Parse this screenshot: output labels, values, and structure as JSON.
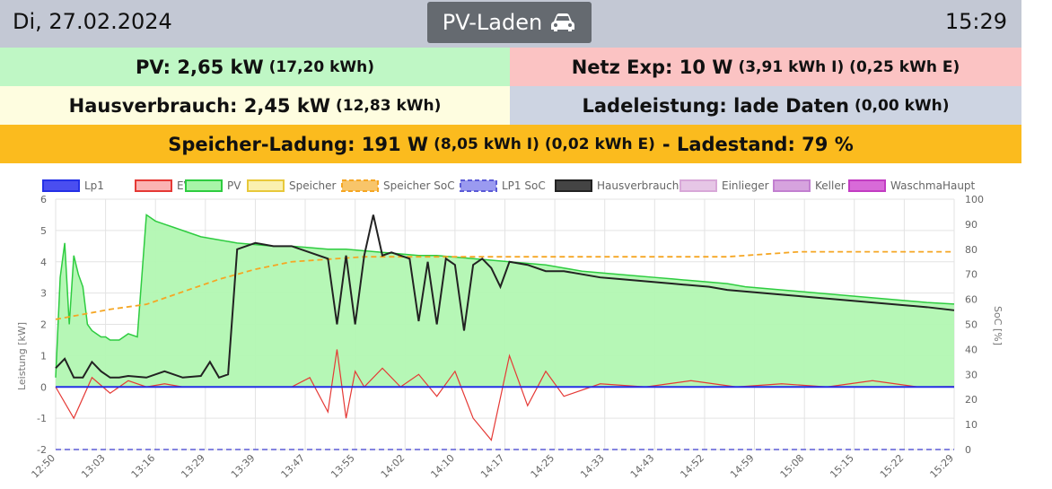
{
  "header": {
    "date": "Di, 27.02.2024",
    "title": "PV-Laden",
    "time": "15:29",
    "title_icon": "car-icon"
  },
  "summary": {
    "pv_main": "PV: 2,65 kW",
    "pv_sub": "(17,20 kWh)",
    "netz_main": "Netz Exp: 10 W",
    "netz_sub": "(3,91 kWh I) (0,25 kWh E)",
    "haus_main": "Hausverbrauch: 2,45 kW",
    "haus_sub": "(12,83 kWh)",
    "lade_main": "Ladeleistung: lade Daten",
    "lade_sub": "(0,00 kWh)",
    "speicher_main": "Speicher-Ladung: 191 W",
    "speicher_sub": "(8,05 kWh I) (0,02 kWh E)",
    "ladestand": "- Ladestand: 79 %"
  },
  "colors": {
    "pv": "#2ecc40",
    "pv_fill": "#b2f7b2",
    "evu": "#e53935",
    "speicher": "#f7d04a",
    "speicher_soc": "#f5a623",
    "lp1": "#2430e6",
    "lp1_soc": "#5b5bd6",
    "haus": "#222222",
    "einlieger": "#d8a8d8",
    "keller": "#c27fd0",
    "waschma": "#c23cc2"
  },
  "chart_data": {
    "type": "line",
    "ylabel": "Leistung [kW]",
    "y2label": "SoC [%]",
    "ylim": [
      -2,
      6
    ],
    "y2lim": [
      0,
      100
    ],
    "yticks": [
      "6",
      "5",
      "4",
      "3",
      "2",
      "1",
      "0",
      "-1",
      "-2"
    ],
    "y2ticks": [
      "100",
      "90",
      "80",
      "70",
      "60",
      "50",
      "40",
      "30",
      "20",
      "10",
      "0"
    ],
    "x_ticks": [
      "12:50",
      "13:03",
      "13:16",
      "13:29",
      "13:39",
      "13:47",
      "13:55",
      "14:02",
      "14:10",
      "14:17",
      "14:25",
      "14:33",
      "14:43",
      "14:52",
      "14:59",
      "15:08",
      "15:15",
      "15:22",
      "15:29"
    ],
    "legend": [
      {
        "name": "Lp1",
        "color": "#2430e6",
        "fill": "#4a4ef0",
        "dash": false
      },
      {
        "name": "EVU",
        "color": "#e53935",
        "fill": "#fbb3b3",
        "dash": false
      },
      {
        "name": "PV",
        "color": "#2ecc40",
        "fill": "#a8f5a8",
        "dash": false
      },
      {
        "name": "Speicher",
        "color": "#e8c83a",
        "fill": "#faf0b0",
        "dash": false
      },
      {
        "name": "Speicher SoC",
        "color": "#f5a623",
        "fill": "#f8c56a",
        "dash": true
      },
      {
        "name": "LP1 SoC",
        "color": "#5b5bd6",
        "fill": "#9a9af0",
        "dash": true
      },
      {
        "name": "Hausverbrauch",
        "color": "#222222",
        "fill": "#444444",
        "dash": false
      },
      {
        "name": "Einlieger",
        "color": "#d8a8d8",
        "fill": "#e6c6e6",
        "dash": false
      },
      {
        "name": "Keller",
        "color": "#c27fd0",
        "fill": "#d6a3de",
        "dash": false
      },
      {
        "name": "WaschmaHaupt",
        "color": "#c23cc2",
        "fill": "#d86ad8",
        "dash": false
      }
    ],
    "series": [
      {
        "name": "PV",
        "x": [
          0,
          0.5,
          1,
          1.5,
          2,
          2.5,
          3,
          3.5,
          4,
          4.5,
          5,
          5.5,
          6,
          6.5,
          7,
          7.5,
          8,
          9,
          10,
          11,
          12,
          13,
          14,
          15,
          16,
          18,
          20,
          22,
          24,
          26,
          28,
          30,
          32,
          34,
          36,
          38,
          40,
          42,
          44,
          46,
          48,
          50,
          52,
          54,
          56,
          58,
          60,
          62,
          64,
          66,
          68,
          70,
          72,
          74,
          76,
          78,
          80,
          82,
          84,
          86,
          88,
          90,
          92,
          94,
          96,
          99
        ],
        "y": [
          0.3,
          3.5,
          4.6,
          2.0,
          4.2,
          3.6,
          3.2,
          2.0,
          1.8,
          1.7,
          1.6,
          1.6,
          1.5,
          1.5,
          1.5,
          1.6,
          1.7,
          1.6,
          5.5,
          5.3,
          5.2,
          5.1,
          5.0,
          4.9,
          4.8,
          4.7,
          4.6,
          4.55,
          4.5,
          4.5,
          4.45,
          4.4,
          4.4,
          4.35,
          4.3,
          4.25,
          4.2,
          4.2,
          4.15,
          4.1,
          4.05,
          4.0,
          3.95,
          3.9,
          3.8,
          3.7,
          3.65,
          3.6,
          3.55,
          3.5,
          3.45,
          3.4,
          3.35,
          3.3,
          3.2,
          3.15,
          3.1,
          3.05,
          3.0,
          2.95,
          2.9,
          2.85,
          2.8,
          2.75,
          2.7,
          2.65
        ]
      },
      {
        "name": "Hausverbrauch",
        "x": [
          0,
          1,
          2,
          3,
          4,
          5,
          6,
          7,
          8,
          10,
          12,
          14,
          16,
          17,
          18,
          19,
          20,
          22,
          24,
          26,
          28,
          30,
          31,
          32,
          33,
          34,
          35,
          36,
          37,
          38,
          39,
          40,
          41,
          42,
          43,
          44,
          45,
          46,
          47,
          48,
          49,
          50,
          52,
          54,
          56,
          58,
          60,
          62,
          64,
          66,
          68,
          70,
          72,
          74,
          76,
          78,
          80,
          82,
          84,
          86,
          88,
          90,
          92,
          94,
          96,
          99
        ],
        "y": [
          0.6,
          0.9,
          0.3,
          0.3,
          0.8,
          0.5,
          0.3,
          0.3,
          0.35,
          0.3,
          0.5,
          0.3,
          0.35,
          0.8,
          0.3,
          0.4,
          4.4,
          4.6,
          4.5,
          4.5,
          4.3,
          4.1,
          2.0,
          4.2,
          2.0,
          4.2,
          5.5,
          4.2,
          4.3,
          4.2,
          4.1,
          2.1,
          4.0,
          2.0,
          4.1,
          3.9,
          1.8,
          3.9,
          4.1,
          3.8,
          3.2,
          4.0,
          3.9,
          3.7,
          3.7,
          3.6,
          3.5,
          3.45,
          3.4,
          3.35,
          3.3,
          3.25,
          3.2,
          3.1,
          3.05,
          3.0,
          2.95,
          2.9,
          2.85,
          2.8,
          2.75,
          2.7,
          2.65,
          2.6,
          2.55,
          2.45
        ]
      },
      {
        "name": "Speicher SoC",
        "x": [
          0,
          6,
          10,
          14,
          18,
          22,
          26,
          30,
          34,
          38,
          42,
          46,
          50,
          54,
          58,
          62,
          66,
          70,
          74,
          78,
          82,
          86,
          90,
          94,
          99
        ],
        "y": [
          52,
          56,
          58,
          63,
          68,
          72,
          75,
          76,
          77,
          77,
          77,
          77,
          77,
          77,
          77,
          77,
          77,
          77,
          77,
          78,
          79,
          79,
          79,
          79,
          79
        ]
      },
      {
        "name": "EVU",
        "x": [
          0,
          2,
          4,
          6,
          8,
          10,
          12,
          14,
          16,
          18,
          20,
          22,
          24,
          26,
          28,
          30,
          31,
          32,
          33,
          34,
          36,
          38,
          40,
          42,
          44,
          46,
          48,
          50,
          52,
          54,
          56,
          60,
          65,
          70,
          75,
          80,
          85,
          90,
          95,
          99
        ],
        "y": [
          0.0,
          -1.0,
          0.3,
          -0.2,
          0.2,
          0.0,
          0.1,
          0.0,
          0.0,
          0.0,
          0.0,
          0.0,
          0.0,
          0.0,
          0.3,
          -0.8,
          1.2,
          -1.0,
          0.5,
          0.0,
          0.6,
          0.0,
          0.4,
          -0.3,
          0.5,
          -1.0,
          -1.7,
          1.0,
          -0.6,
          0.5,
          -0.3,
          0.1,
          0.0,
          0.2,
          0.0,
          0.1,
          0.0,
          0.2,
          0.0,
          0.01
        ]
      },
      {
        "name": "LP1 SoC",
        "x": [
          0,
          99
        ],
        "y": [
          0,
          0
        ]
      },
      {
        "name": "Lp1",
        "x": [
          0,
          99
        ],
        "y": [
          0,
          0
        ]
      }
    ]
  }
}
